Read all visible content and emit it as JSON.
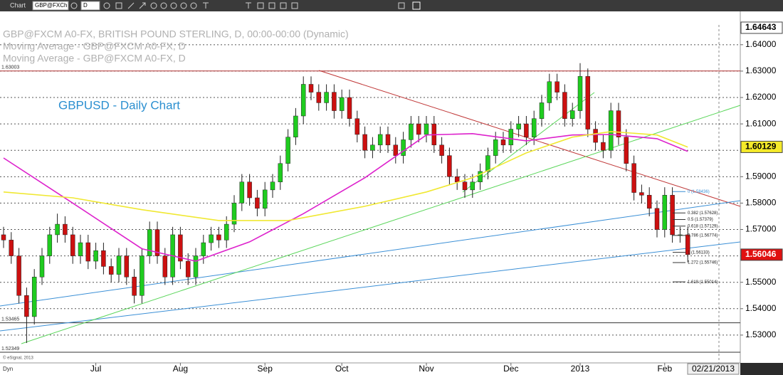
{
  "toolbar": {
    "window": "Chart",
    "symbol": "GBP@FXCh",
    "interval": "D"
  },
  "chart_data": {
    "type": "candlestick",
    "legend_lines": [
      "GBP@FXCM A0-FX, BRITISH POUND STERLING, D, 00:00-00:00 (Dynamic)",
      "Moving Average - GBP@FXCM A0-FX, D",
      "Moving Average - GBP@FXCM A0-FX, D"
    ],
    "title": "GBPUSD - Daily Chart",
    "up_color": "#1fcc1f",
    "down_color": "#cc1010",
    "open": [
      1.568,
      1.566,
      1.56,
      1.545,
      1.537,
      1.552,
      1.56,
      1.568,
      1.572,
      1.568,
      1.56,
      1.565,
      1.558,
      1.562,
      1.556,
      1.553,
      1.56,
      1.552,
      1.545,
      1.56,
      1.57,
      1.56,
      1.552,
      1.568,
      1.558,
      1.552,
      1.56,
      1.565,
      1.568,
      1.566,
      1.572,
      1.58,
      1.588,
      1.582,
      1.578,
      1.585,
      1.588,
      1.595,
      1.605,
      1.613,
      1.625,
      1.622,
      1.618,
      1.622,
      1.615,
      1.62,
      1.612,
      1.606,
      1.6,
      1.602,
      1.606,
      1.602,
      1.598,
      1.604,
      1.61,
      1.606,
      1.61,
      1.602,
      1.598,
      1.59,
      1.588,
      1.585,
      1.588,
      1.592,
      1.598,
      1.604,
      1.602,
      1.608,
      1.61,
      1.605,
      1.612,
      1.618,
      1.626,
      1.622,
      1.612,
      1.615,
      1.628,
      1.608,
      1.603,
      1.6,
      1.615,
      1.605,
      1.595,
      1.584,
      1.583,
      1.578,
      1.57,
      1.583,
      1.568,
      1.568
    ],
    "high": [
      1.571,
      1.569,
      1.563,
      1.548,
      1.555,
      1.563,
      1.571,
      1.576,
      1.575,
      1.571,
      1.568,
      1.568,
      1.565,
      1.565,
      1.559,
      1.563,
      1.563,
      1.555,
      1.563,
      1.573,
      1.573,
      1.563,
      1.571,
      1.571,
      1.561,
      1.563,
      1.568,
      1.571,
      1.571,
      1.575,
      1.583,
      1.591,
      1.591,
      1.585,
      1.588,
      1.591,
      1.598,
      1.608,
      1.616,
      1.628,
      1.628,
      1.625,
      1.625,
      1.625,
      1.623,
      1.623,
      1.615,
      1.609,
      1.605,
      1.609,
      1.609,
      1.605,
      1.607,
      1.613,
      1.613,
      1.613,
      1.613,
      1.605,
      1.601,
      1.593,
      1.591,
      1.591,
      1.595,
      1.601,
      1.607,
      1.607,
      1.611,
      1.613,
      1.613,
      1.615,
      1.621,
      1.629,
      1.629,
      1.625,
      1.618,
      1.633,
      1.631,
      1.611,
      1.606,
      1.618,
      1.618,
      1.608,
      1.598,
      1.587,
      1.586,
      1.581,
      1.586,
      1.586,
      1.571,
      1.571
    ],
    "low": [
      1.563,
      1.557,
      1.542,
      1.527,
      1.534,
      1.549,
      1.557,
      1.565,
      1.565,
      1.557,
      1.557,
      1.555,
      1.555,
      1.553,
      1.55,
      1.55,
      1.549,
      1.542,
      1.542,
      1.557,
      1.557,
      1.549,
      1.549,
      1.555,
      1.549,
      1.549,
      1.557,
      1.562,
      1.563,
      1.563,
      1.569,
      1.577,
      1.579,
      1.575,
      1.575,
      1.582,
      1.585,
      1.592,
      1.602,
      1.61,
      1.619,
      1.615,
      1.615,
      1.612,
      1.612,
      1.609,
      1.603,
      1.597,
      1.597,
      1.599,
      1.599,
      1.595,
      1.595,
      1.601,
      1.603,
      1.603,
      1.599,
      1.595,
      1.587,
      1.585,
      1.582,
      1.582,
      1.585,
      1.589,
      1.595,
      1.599,
      1.599,
      1.605,
      1.602,
      1.602,
      1.609,
      1.615,
      1.619,
      1.609,
      1.609,
      1.612,
      1.605,
      1.6,
      1.597,
      1.597,
      1.602,
      1.592,
      1.581,
      1.58,
      1.575,
      1.567,
      1.567,
      1.565,
      1.565,
      1.5575
    ],
    "close": [
      1.566,
      1.56,
      1.545,
      1.537,
      1.552,
      1.56,
      1.568,
      1.572,
      1.568,
      1.56,
      1.565,
      1.558,
      1.562,
      1.556,
      1.553,
      1.56,
      1.552,
      1.545,
      1.56,
      1.57,
      1.56,
      1.552,
      1.568,
      1.558,
      1.552,
      1.56,
      1.565,
      1.568,
      1.566,
      1.572,
      1.58,
      1.588,
      1.582,
      1.578,
      1.585,
      1.588,
      1.595,
      1.605,
      1.613,
      1.625,
      1.622,
      1.618,
      1.622,
      1.615,
      1.62,
      1.612,
      1.606,
      1.6,
      1.602,
      1.606,
      1.602,
      1.598,
      1.604,
      1.61,
      1.606,
      1.61,
      1.602,
      1.598,
      1.59,
      1.588,
      1.585,
      1.588,
      1.592,
      1.598,
      1.604,
      1.602,
      1.608,
      1.61,
      1.605,
      1.612,
      1.618,
      1.626,
      1.622,
      1.612,
      1.615,
      1.628,
      1.608,
      1.603,
      1.6,
      1.615,
      1.605,
      1.595,
      1.584,
      1.583,
      1.578,
      1.57,
      1.583,
      1.568,
      1.568,
      1.5605
    ],
    "moving_averages": [
      {
        "color": "#dd22cc",
        "x": [
          0,
          9,
          18,
          25,
          32,
          39,
          47,
          55,
          61,
          68,
          74,
          79,
          85,
          89
        ],
        "values": [
          1.5971,
          1.58,
          1.5627,
          1.558,
          1.5653,
          1.576,
          1.5896,
          1.6058,
          1.6063,
          1.6036,
          1.6058,
          1.606,
          1.6044,
          1.5996
        ]
      },
      {
        "color": "#f0e832",
        "x": [
          0,
          9,
          18,
          28,
          37,
          47,
          55,
          61,
          68,
          74,
          79,
          85,
          89
        ],
        "values": [
          1.5842,
          1.582,
          1.5775,
          1.5734,
          1.5734,
          1.5788,
          1.5842,
          1.5896,
          1.599,
          1.605,
          1.6071,
          1.6058,
          1.6012
        ]
      }
    ],
    "xticks": [
      {
        "value": 12,
        "label": "Jul"
      },
      {
        "value": 23,
        "label": "Aug"
      },
      {
        "value": 34,
        "label": "Sep"
      },
      {
        "value": 44,
        "label": "Oct"
      },
      {
        "value": 55,
        "label": "Nov"
      },
      {
        "value": 66,
        "label": "Dec"
      },
      {
        "value": 75,
        "label": "2013"
      },
      {
        "value": 86,
        "label": "Feb"
      }
    ],
    "ylim": [
      1.52,
      1.6475
    ],
    "yticks": [
      {
        "value": 1.53,
        "label": "1.53000"
      },
      {
        "value": 1.54,
        "label": "1.54000"
      },
      {
        "value": 1.55,
        "label": "1.55000"
      },
      {
        "value": 1.56,
        "label": "1.56000"
      },
      {
        "value": 1.57,
        "label": "1.57000"
      },
      {
        "value": 1.58,
        "label": "1.58000"
      },
      {
        "value": 1.59,
        "label": "1.59000"
      },
      {
        "value": 1.6,
        "label": "1.60000"
      },
      {
        "value": 1.61,
        "label": "1.61000"
      },
      {
        "value": 1.62,
        "label": "1.62000"
      },
      {
        "value": 1.63,
        "label": "1.63000"
      },
      {
        "value": 1.64,
        "label": "1.64000"
      }
    ],
    "grid": true,
    "price_boxes": [
      {
        "value": 1.64643,
        "color": "#ffffff"
      },
      {
        "value": 1.60129,
        "color": "#f5ea2a"
      },
      {
        "value": 1.56046,
        "color": "#e01010"
      }
    ],
    "levels": [
      {
        "value": 1.63003,
        "color": "#b03030"
      },
      {
        "value": 1.53465,
        "color": "#333333"
      },
      {
        "value": 1.52349,
        "color": "#333333"
      }
    ],
    "fib": [
      {
        "value": 1.58436,
        "label": "0 (1.58436)"
      },
      {
        "value": 1.57628,
        "label": "0.382 (1.57628)"
      },
      {
        "value": 1.57379,
        "label": "0.5 (1.57379)"
      },
      {
        "value": 1.57129,
        "label": "0.618 (1.57129)"
      },
      {
        "value": 1.56774,
        "label": "0.786 (1.56774)"
      },
      {
        "value": 1.56133,
        "label": "1 (1.56133)"
      },
      {
        "value": 1.55746,
        "label": "1.272 (1.55746)"
      },
      {
        "value": 1.55014,
        "label": "1.618 (1.55014)"
      }
    ],
    "date_label": "02/21/2013",
    "mode": "Dyn",
    "copyright": "© eSignal, 2013"
  }
}
